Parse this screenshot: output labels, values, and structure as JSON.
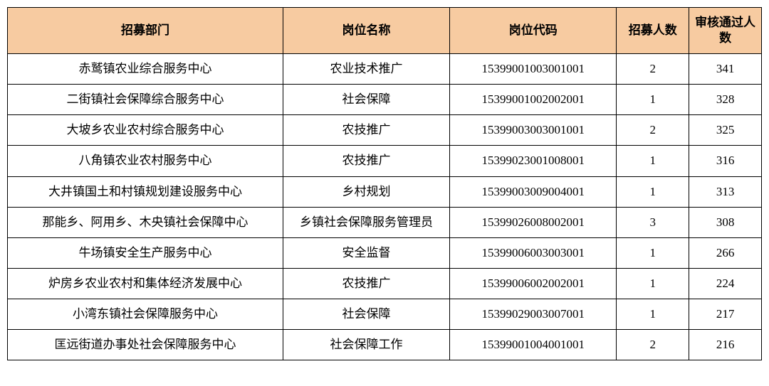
{
  "table": {
    "header_bg": "#f7cba1",
    "columns": [
      "招募部门",
      "岗位名称",
      "岗位代码",
      "招募人数",
      "审核通过人数"
    ],
    "rows": [
      {
        "dept": "赤鹫镇农业综合服务中心",
        "post": "农业技术推广",
        "code": "15399001003001001",
        "num": "2",
        "pass": "341"
      },
      {
        "dept": "二街镇社会保障综合服务中心",
        "post": "社会保障",
        "code": "15399001002002001",
        "num": "1",
        "pass": "328"
      },
      {
        "dept": "大坡乡农业农村综合服务中心",
        "post": "农技推广",
        "code": "15399003003001001",
        "num": "2",
        "pass": "325"
      },
      {
        "dept": "八角镇农业农村服务中心",
        "post": "农技推广",
        "code": "15399023001008001",
        "num": "1",
        "pass": "316"
      },
      {
        "dept": "大井镇国土和村镇规划建设服务中心",
        "post": "乡村规划",
        "code": "15399003009004001",
        "num": "1",
        "pass": "313"
      },
      {
        "dept": "那能乡、阿用乡、木央镇社会保障中心",
        "post": "乡镇社会保障服务管理员",
        "code": "15399026008002001",
        "num": "3",
        "pass": "308"
      },
      {
        "dept": "牛场镇安全生产服务中心",
        "post": "安全监督",
        "code": "15399006003003001",
        "num": "1",
        "pass": "266"
      },
      {
        "dept": "炉房乡农业农村和集体经济发展中心",
        "post": "农技推广",
        "code": "15399006002002001",
        "num": "1",
        "pass": "224"
      },
      {
        "dept": "小湾东镇社会保障服务中心",
        "post": "社会保障",
        "code": "15399029003007001",
        "num": "1",
        "pass": "217"
      },
      {
        "dept": "匡远街道办事处社会保障服务中心",
        "post": "社会保障工作",
        "code": "15399001004001001",
        "num": "2",
        "pass": "216"
      }
    ]
  }
}
